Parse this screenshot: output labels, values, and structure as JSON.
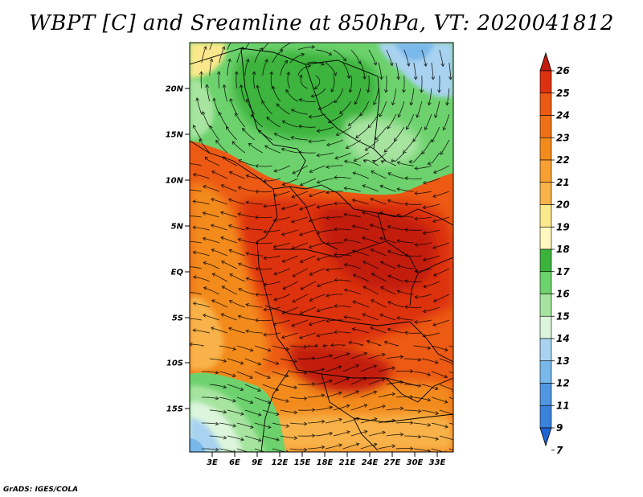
{
  "title": "WBPT [C] and Sreamline at 850hPa, VT: 2020041812",
  "credit": "GrADS: IGES/COLA",
  "map": {
    "lon_labels": [
      "3E",
      "6E",
      "9E",
      "12E",
      "15E",
      "18E",
      "21E",
      "24E",
      "27E",
      "30E",
      "33E"
    ],
    "lat_labels": [
      "20N",
      "15N",
      "10N",
      "5N",
      "EQ",
      "5S",
      "10S",
      "15S"
    ],
    "colors": {
      "green_dark": "#3cb43c",
      "green": "#6dd26d",
      "green_light": "#a7e4a0",
      "pale": "#dcf5dc",
      "blue_light": "#a8d2f0",
      "blue": "#78b8ea",
      "yellow": "#fbe88c",
      "orange_light": "#f8b24a",
      "orange": "#f38b1c",
      "red_orange": "#ec5a14",
      "red": "#dc3210",
      "dark_red": "#c21c0c"
    }
  },
  "colorbar": {
    "labels": [
      "26",
      "25",
      "24",
      "23",
      "22",
      "21",
      "20",
      "19",
      "18",
      "17",
      "16",
      "15",
      "14",
      "13",
      "12",
      "11",
      "9",
      "7"
    ],
    "colors": [
      "#c21c0c",
      "#dc3210",
      "#ec5a14",
      "#f07018",
      "#f38b1c",
      "#f6a032",
      "#f8b24a",
      "#fbe88c",
      "#fff6c0",
      "#3cb43c",
      "#6dd26d",
      "#a7e4a0",
      "#dcf5dc",
      "#a8d2f0",
      "#78b8ea",
      "#5096e0",
      "#3c82dc",
      "#1e64d2"
    ]
  }
}
